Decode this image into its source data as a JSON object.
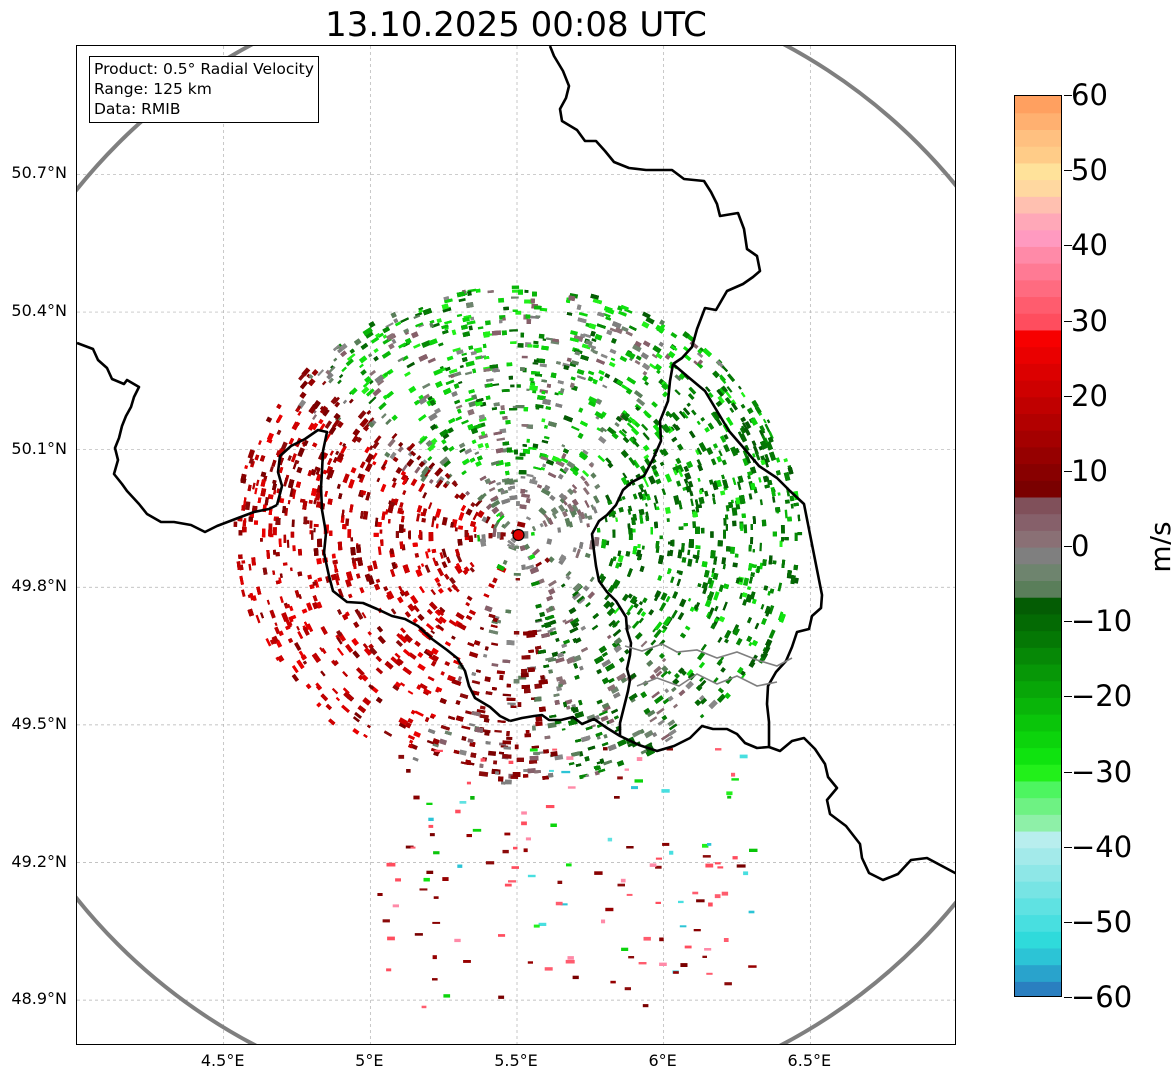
{
  "title": "13.10.2025 00:08 UTC",
  "info_box": {
    "product": "Product: 0.5° Radial Velocity",
    "range": "Range: 125 km",
    "data": "Data: RMIB"
  },
  "map": {
    "lon_range": [
      4.0,
      7.0
    ],
    "lat_range": [
      48.8,
      50.98
    ],
    "radar_site": {
      "lon": 5.505,
      "lat": 49.914
    },
    "y_ticks": [
      {
        "lat": 50.7,
        "label": "50.7°N"
      },
      {
        "lat": 50.4,
        "label": "50.4°N"
      },
      {
        "lat": 50.1,
        "label": "50.1°N"
      },
      {
        "lat": 49.8,
        "label": "49.8°N"
      },
      {
        "lat": 49.5,
        "label": "49.5°N"
      },
      {
        "lat": 49.2,
        "label": "49.2°N"
      },
      {
        "lat": 48.9,
        "label": "48.9°N"
      }
    ],
    "x_ticks": [
      {
        "lon": 4.5,
        "label": "4.5°E"
      },
      {
        "lon": 5.0,
        "label": "5°E"
      },
      {
        "lon": 5.5,
        "label": "5.5°E"
      },
      {
        "lon": 6.0,
        "label": "6°E"
      },
      {
        "lon": 6.5,
        "label": "6.5°E"
      }
    ]
  },
  "colorbar": {
    "unit": "m/s",
    "min": -60,
    "max": 60,
    "ticks": [
      {
        "value": 60,
        "label": "60"
      },
      {
        "value": 50,
        "label": "50"
      },
      {
        "value": 40,
        "label": "40"
      },
      {
        "value": 30,
        "label": "30"
      },
      {
        "value": 20,
        "label": "20"
      },
      {
        "value": 10,
        "label": "10"
      },
      {
        "value": 0,
        "label": "0"
      },
      {
        "value": -10,
        "label": "−10"
      },
      {
        "value": -20,
        "label": "−20"
      },
      {
        "value": -30,
        "label": "−30"
      },
      {
        "value": -40,
        "label": "−40"
      },
      {
        "value": -50,
        "label": "−50"
      },
      {
        "value": -60,
        "label": "−60"
      }
    ],
    "colors_bottom_to_top": [
      "#2a7fc0",
      "#29a3cc",
      "#2cc4d6",
      "#2fdadb",
      "#48dfe0",
      "#5fe2e2",
      "#77e4e4",
      "#8ee7e7",
      "#a3eaea",
      "#b8eeee",
      "#8ef0a8",
      "#6ef283",
      "#4df560",
      "#22f01a",
      "#0fe30f",
      "#0cd40c",
      "#0ac50a",
      "#09b509",
      "#08a608",
      "#079707",
      "#068806",
      "#057805",
      "#046a04",
      "#045c04",
      "#5a7e5a",
      "#6e846e",
      "#7f7f7f",
      "#8a7075",
      "#86606a",
      "#80505a",
      "#7a0000",
      "#880000",
      "#960000",
      "#a40000",
      "#b20000",
      "#c00000",
      "#ce0000",
      "#dc0000",
      "#ea0000",
      "#f70000",
      "#ff4d5e",
      "#ff5c6e",
      "#ff6b80",
      "#ff7a94",
      "#ff8aa8",
      "#ff9ac0",
      "#ffa8b8",
      "#ffc0b0",
      "#ffd8a0",
      "#ffe29a",
      "#ffcc88",
      "#ffc080",
      "#ffb070",
      "#ffa060"
    ]
  }
}
